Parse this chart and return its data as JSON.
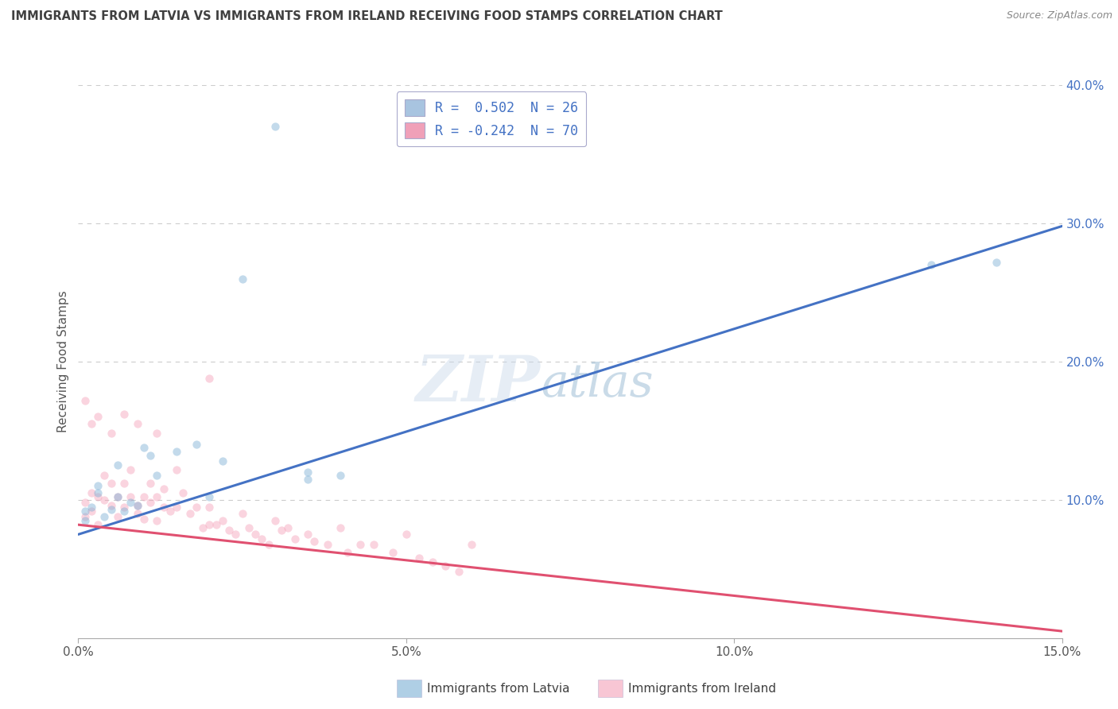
{
  "title": "IMMIGRANTS FROM LATVIA VS IMMIGRANTS FROM IRELAND RECEIVING FOOD STAMPS CORRELATION CHART",
  "source": "Source: ZipAtlas.com",
  "ylabel": "Receiving Food Stamps",
  "x_min": 0.0,
  "x_max": 0.15,
  "y_min": 0.0,
  "y_max": 0.4,
  "y_ticks": [
    0.1,
    0.2,
    0.3,
    0.4
  ],
  "y_tick_labels": [
    "10.0%",
    "20.0%",
    "30.0%",
    "40.0%"
  ],
  "x_ticks": [
    0.0,
    0.05,
    0.1,
    0.15
  ],
  "x_tick_labels": [
    "0.0%",
    "5.0%",
    "10.0%",
    "15.0%"
  ],
  "legend_entries": [
    {
      "label": "R =  0.502  N = 26",
      "color": "#a8c4e0"
    },
    {
      "label": "R = -0.242  N = 70",
      "color": "#f0a0b8"
    }
  ],
  "watermark_zip": "ZIP",
  "watermark_atlas": "atlas",
  "latvia_color": "#7bafd4",
  "ireland_color": "#f4a0b8",
  "latvia_scatter": {
    "x": [
      0.001,
      0.001,
      0.002,
      0.003,
      0.003,
      0.004,
      0.005,
      0.006,
      0.006,
      0.007,
      0.008,
      0.009,
      0.01,
      0.011,
      0.012,
      0.015,
      0.018,
      0.02,
      0.022,
      0.025,
      0.03,
      0.035,
      0.035,
      0.04,
      0.13,
      0.14
    ],
    "y": [
      0.085,
      0.092,
      0.095,
      0.105,
      0.11,
      0.088,
      0.093,
      0.102,
      0.125,
      0.092,
      0.098,
      0.096,
      0.138,
      0.132,
      0.118,
      0.135,
      0.14,
      0.102,
      0.128,
      0.26,
      0.37,
      0.115,
      0.12,
      0.118,
      0.27,
      0.272
    ]
  },
  "ireland_scatter": {
    "x": [
      0.001,
      0.001,
      0.002,
      0.002,
      0.003,
      0.003,
      0.004,
      0.004,
      0.005,
      0.005,
      0.006,
      0.006,
      0.007,
      0.007,
      0.008,
      0.008,
      0.009,
      0.009,
      0.01,
      0.01,
      0.011,
      0.011,
      0.012,
      0.012,
      0.013,
      0.013,
      0.014,
      0.015,
      0.015,
      0.016,
      0.017,
      0.018,
      0.019,
      0.02,
      0.02,
      0.021,
      0.022,
      0.023,
      0.024,
      0.025,
      0.026,
      0.027,
      0.028,
      0.029,
      0.03,
      0.031,
      0.032,
      0.033,
      0.035,
      0.036,
      0.038,
      0.04,
      0.041,
      0.043,
      0.045,
      0.048,
      0.05,
      0.052,
      0.054,
      0.056,
      0.058,
      0.06,
      0.001,
      0.002,
      0.003,
      0.005,
      0.007,
      0.009,
      0.012,
      0.02
    ],
    "y": [
      0.088,
      0.098,
      0.092,
      0.105,
      0.082,
      0.102,
      0.1,
      0.118,
      0.096,
      0.112,
      0.088,
      0.102,
      0.112,
      0.095,
      0.102,
      0.122,
      0.09,
      0.096,
      0.102,
      0.086,
      0.112,
      0.098,
      0.102,
      0.085,
      0.095,
      0.108,
      0.092,
      0.122,
      0.095,
      0.105,
      0.09,
      0.095,
      0.08,
      0.082,
      0.095,
      0.082,
      0.085,
      0.078,
      0.075,
      0.09,
      0.08,
      0.075,
      0.072,
      0.068,
      0.085,
      0.078,
      0.08,
      0.072,
      0.075,
      0.07,
      0.068,
      0.08,
      0.062,
      0.068,
      0.068,
      0.062,
      0.075,
      0.058,
      0.055,
      0.052,
      0.048,
      0.068,
      0.172,
      0.155,
      0.16,
      0.148,
      0.162,
      0.155,
      0.148,
      0.188
    ]
  },
  "latvia_line": {
    "x0": 0.0,
    "y0": 0.075,
    "x1": 0.15,
    "y1": 0.298
  },
  "ireland_line": {
    "x0": 0.0,
    "y0": 0.082,
    "x1": 0.15,
    "y1": 0.005
  },
  "background_color": "#ffffff",
  "grid_color": "#cccccc",
  "title_color": "#404040",
  "dot_size": 55,
  "dot_alpha": 0.45,
  "line_width": 2.2
}
